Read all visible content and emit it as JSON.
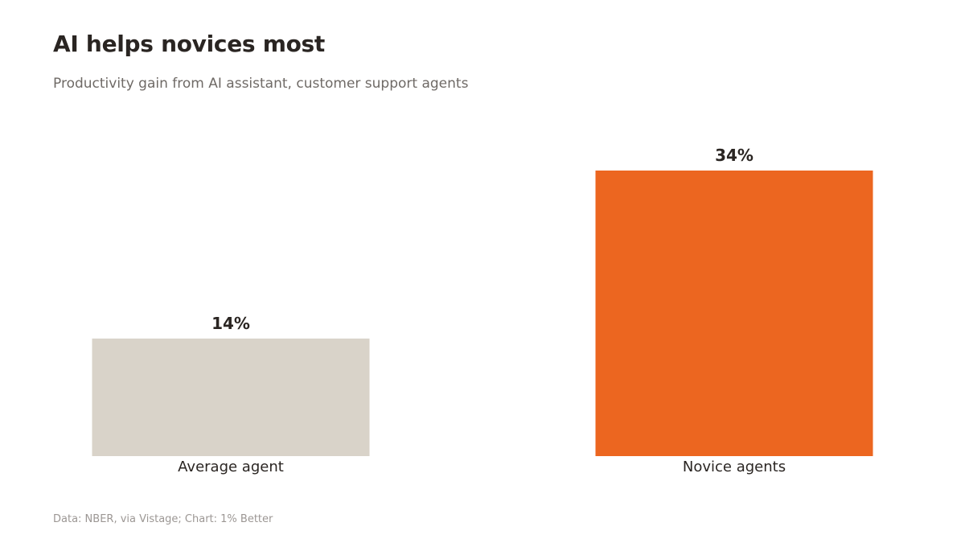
{
  "title": "AI helps novices most",
  "subtitle": "Productivity gain from AI assistant, customer support agents",
  "source": "Data: NBER, via Vistage; Chart: 1% Better",
  "chart_data": {
    "type": "bar",
    "categories": [
      "Average agent",
      "Novice agents"
    ],
    "values": [
      14,
      34
    ],
    "value_labels": [
      "14%",
      "34%"
    ],
    "colors": [
      "#d9d3c9",
      "#ec6620"
    ],
    "ylim": [
      0,
      34
    ],
    "grid": false,
    "xlabel": "",
    "ylabel": ""
  }
}
